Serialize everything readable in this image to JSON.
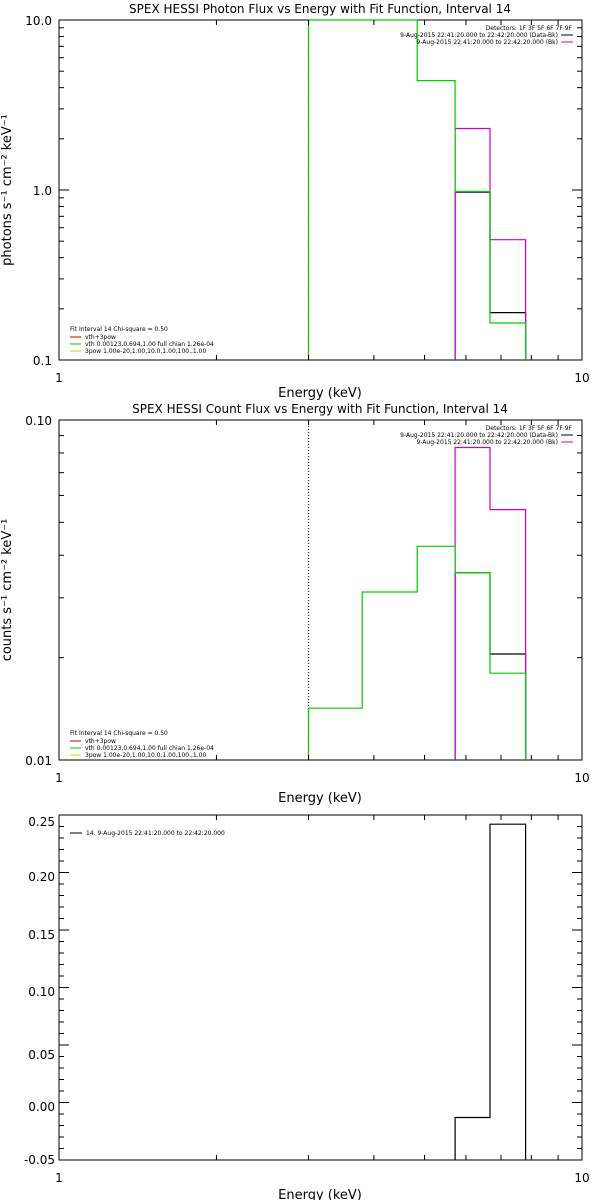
{
  "chart_data": [
    {
      "type": "line",
      "title": "SPEX HESSI Photon Flux vs Energy with Fit Function, Interval 14",
      "xlabel": "Energy (keV)",
      "ylabel": "photons s⁻¹ cm⁻² keV⁻¹",
      "xscale": "log",
      "yscale": "log",
      "xlim": [
        1,
        10
      ],
      "ylim": [
        0.1,
        10.0
      ],
      "x_ticks": [
        "1",
        "10"
      ],
      "y_ticks": [
        "0.1",
        "1.0",
        "10.0"
      ],
      "top_legend": [
        "Detectors: 1F 3F 5F 6F 7F 9F",
        "9-Aug-2015 22:41:20.000 to 22:42:20.000 (Data-Bk)",
        "9-Aug-2015 22:41:20.000 to 22:42:20.000 (Bk)"
      ],
      "bottom_legend": [
        "Fit Interval 14   Chi-square = 0.50",
        "vth+3pow",
        "vth 0.00123,0.694,1.00  full chian 1.26e-04",
        "3pow 1.00e-20,1.00,10.0,1.00,100.,1.00"
      ],
      "series": [
        {
          "name": "9-Aug-2015 22:41:20.000 to 22:42:20.000 (Data-Bk)",
          "color": "#000000",
          "bins": [
            [
              5.72,
              6.67,
              0.97
            ],
            [
              6.67,
              7.8,
              0.19
            ]
          ]
        },
        {
          "name": "9-Aug-2015 22:41:20.000 to 22:42:20.000 (Bk)",
          "color": "#cc00cc",
          "bins": [
            [
              5.72,
              6.67,
              2.3
            ],
            [
              6.67,
              7.8,
              0.51
            ]
          ]
        },
        {
          "name": "vth 0.00123,0.694,1.00  full chian 1.26e-04",
          "color": "#00cc00",
          "bins": [
            [
              3.0,
              4.84,
              10.0
            ],
            [
              4.84,
              5.72,
              4.4
            ],
            [
              5.72,
              6.67,
              0.98
            ],
            [
              6.67,
              7.8,
              0.165
            ]
          ]
        }
      ]
    },
    {
      "type": "line",
      "title": "SPEX HESSI Count Flux vs Energy with Fit Function, Interval 14",
      "xlabel": "Energy (keV)",
      "ylabel": "counts s⁻¹ cm⁻² keV⁻¹",
      "xscale": "log",
      "yscale": "log",
      "xlim": [
        1,
        10
      ],
      "ylim": [
        0.01,
        0.1
      ],
      "x_ticks": [
        "1",
        "10"
      ],
      "y_ticks": [
        "0.01",
        "0.10"
      ],
      "top_legend": [
        "Detectors: 1F 3F 5F 6F 7F 9F",
        "9-Aug-2015 22:41:20.000 to 22:42:20.000 (Data-Bk)",
        "9-Aug-2015 22:41:20.000 to 22:42:20.000 (Bk)"
      ],
      "bottom_legend": [
        "Fit Interval 14   Chi-square = 0.50",
        "vth+3pow",
        "vth 0.00123,0.694,1.00  full chian 1.26e-04",
        "3pow 1.00e-20,1.00,10.0,1.00,100.,1.00"
      ],
      "series": [
        {
          "name": "9-Aug-2015 22:41:20.000 to 22:42:20.000 (Data-Bk)",
          "color": "#000000",
          "bins": [
            [
              5.72,
              6.67,
              0.0355
            ],
            [
              6.67,
              7.8,
              0.0205
            ]
          ]
        },
        {
          "name": "9-Aug-2015 22:41:20.000 to 22:42:20.000 (Bk)",
          "color": "#cc00cc",
          "bins": [
            [
              5.72,
              6.67,
              0.083
            ],
            [
              6.67,
              7.8,
              0.0545
            ]
          ]
        },
        {
          "name": "vth 0.00123,0.694,1.00  full chian 1.26e-04",
          "color": "#00cc00",
          "bins": [
            [
              3.0,
              3.8,
              0.0142
            ],
            [
              3.8,
              4.84,
              0.0312
            ],
            [
              4.84,
              5.72,
              0.0425
            ],
            [
              5.72,
              6.67,
              0.0355
            ],
            [
              6.67,
              7.8,
              0.018
            ]
          ]
        }
      ]
    },
    {
      "type": "line",
      "title": "",
      "xlabel": "Energy (keV)",
      "ylabel": "",
      "xscale": "log",
      "yscale": "linear",
      "xlim": [
        1,
        10
      ],
      "ylim": [
        -0.05,
        0.25
      ],
      "x_ticks": [
        "1",
        "10"
      ],
      "y_ticks": [
        "-0.05",
        "0.00",
        "0.05",
        "0.10",
        "0.15",
        "0.20",
        "0.25"
      ],
      "legend": [
        "14.  9-Aug-2015 22:41:20.000 to 22:42:20.000"
      ],
      "series": [
        {
          "name": "14.  9-Aug-2015 22:41:20.000 to 22:42:20.000",
          "color": "#000000",
          "bins": [
            [
              5.72,
              6.67,
              -0.013
            ],
            [
              6.67,
              7.8,
              0.242
            ]
          ]
        }
      ]
    }
  ]
}
